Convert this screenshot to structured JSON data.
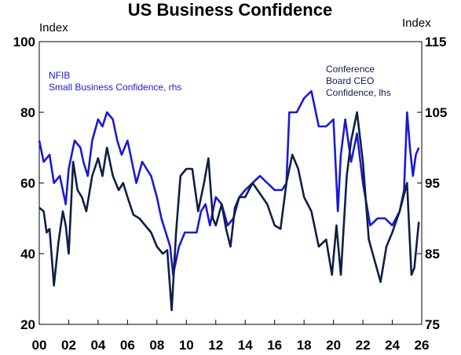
{
  "chart_data": {
    "type": "line",
    "title": "US Business Confidence",
    "left_axis_unit": "Index",
    "right_axis_unit": "Index",
    "left_axis": {
      "ylim": [
        20,
        100
      ],
      "ticks": [
        "20",
        "40",
        "60",
        "80",
        "100"
      ]
    },
    "right_axis": {
      "ylim": [
        75,
        115
      ],
      "ticks": [
        "75",
        "85",
        "95",
        "105",
        "115"
      ]
    },
    "x_range": [
      2000,
      2026
    ],
    "x_ticks": [
      "00",
      "02",
      "04",
      "06",
      "08",
      "10",
      "12",
      "14",
      "16",
      "18",
      "20",
      "22",
      "24",
      "26"
    ],
    "grid": false,
    "series": [
      {
        "name": "NFIB\nSmall Business Confidence, rhs",
        "axis": "right",
        "color": "#1a1ad6",
        "points": [
          [
            2000.0,
            101
          ],
          [
            2000.3,
            98
          ],
          [
            2000.7,
            99
          ],
          [
            2001.0,
            95
          ],
          [
            2001.4,
            96
          ],
          [
            2001.8,
            92
          ],
          [
            2002.0,
            97
          ],
          [
            2002.4,
            101
          ],
          [
            2002.8,
            100
          ],
          [
            2003.0,
            98
          ],
          [
            2003.3,
            96
          ],
          [
            2003.6,
            101
          ],
          [
            2004.0,
            104
          ],
          [
            2004.3,
            103
          ],
          [
            2004.6,
            105
          ],
          [
            2005.0,
            104
          ],
          [
            2005.3,
            101
          ],
          [
            2005.6,
            99
          ],
          [
            2006.0,
            101
          ],
          [
            2006.3,
            98
          ],
          [
            2006.6,
            95
          ],
          [
            2007.0,
            98
          ],
          [
            2007.3,
            97
          ],
          [
            2007.6,
            96
          ],
          [
            2008.0,
            93
          ],
          [
            2008.3,
            90
          ],
          [
            2008.6,
            88
          ],
          [
            2008.9,
            86
          ],
          [
            2009.1,
            82
          ],
          [
            2009.5,
            86
          ],
          [
            2009.9,
            88
          ],
          [
            2010.3,
            88
          ],
          [
            2010.7,
            88
          ],
          [
            2011.0,
            91
          ],
          [
            2011.3,
            92
          ],
          [
            2011.6,
            89
          ],
          [
            2012.0,
            93
          ],
          [
            2012.4,
            92
          ],
          [
            2012.8,
            89
          ],
          [
            2013.2,
            90
          ],
          [
            2013.6,
            93
          ],
          [
            2014.0,
            94
          ],
          [
            2014.5,
            95
          ],
          [
            2015.0,
            96
          ],
          [
            2015.5,
            95
          ],
          [
            2016.0,
            94
          ],
          [
            2016.5,
            94
          ],
          [
            2016.8,
            95
          ],
          [
            2017.0,
            105
          ],
          [
            2017.5,
            105
          ],
          [
            2018.0,
            107
          ],
          [
            2018.5,
            108
          ],
          [
            2019.0,
            103
          ],
          [
            2019.5,
            103
          ],
          [
            2020.0,
            104
          ],
          [
            2020.3,
            91
          ],
          [
            2020.5,
            99
          ],
          [
            2020.8,
            104
          ],
          [
            2021.2,
            98
          ],
          [
            2021.6,
            102
          ],
          [
            2022.0,
            95
          ],
          [
            2022.5,
            89
          ],
          [
            2023.0,
            90
          ],
          [
            2023.5,
            90
          ],
          [
            2024.0,
            89
          ],
          [
            2024.5,
            91
          ],
          [
            2024.8,
            94
          ],
          [
            2025.0,
            105
          ],
          [
            2025.2,
            100
          ],
          [
            2025.4,
            96
          ],
          [
            2025.6,
            99
          ],
          [
            2025.8,
            100
          ]
        ]
      },
      {
        "name": "Conference\nBoard CEO\nConfidence, lhs",
        "axis": "left",
        "color": "#0f1f45",
        "points": [
          [
            2000.0,
            53
          ],
          [
            2000.3,
            52
          ],
          [
            2000.5,
            46
          ],
          [
            2000.7,
            47
          ],
          [
            2001.0,
            31
          ],
          [
            2001.3,
            43
          ],
          [
            2001.6,
            52
          ],
          [
            2001.8,
            48
          ],
          [
            2002.0,
            40
          ],
          [
            2002.3,
            66
          ],
          [
            2002.6,
            58
          ],
          [
            2002.9,
            56
          ],
          [
            2003.2,
            52
          ],
          [
            2003.6,
            62
          ],
          [
            2004.0,
            67
          ],
          [
            2004.3,
            62
          ],
          [
            2004.6,
            70
          ],
          [
            2005.0,
            62
          ],
          [
            2005.4,
            58
          ],
          [
            2005.7,
            60
          ],
          [
            2006.0,
            56
          ],
          [
            2006.4,
            51
          ],
          [
            2006.8,
            50
          ],
          [
            2007.2,
            48
          ],
          [
            2007.6,
            46
          ],
          [
            2008.0,
            42
          ],
          [
            2008.4,
            40
          ],
          [
            2008.7,
            41
          ],
          [
            2009.0,
            24
          ],
          [
            2009.3,
            46
          ],
          [
            2009.6,
            62
          ],
          [
            2010.0,
            64
          ],
          [
            2010.4,
            64
          ],
          [
            2010.8,
            52
          ],
          [
            2011.2,
            60
          ],
          [
            2011.5,
            67
          ],
          [
            2011.8,
            50
          ],
          [
            2012.0,
            48
          ],
          [
            2012.4,
            54
          ],
          [
            2012.7,
            47
          ],
          [
            2013.0,
            42
          ],
          [
            2013.3,
            53
          ],
          [
            2013.6,
            56
          ],
          [
            2014.0,
            56
          ],
          [
            2014.5,
            60
          ],
          [
            2015.0,
            57
          ],
          [
            2015.5,
            54
          ],
          [
            2016.0,
            48
          ],
          [
            2016.4,
            47
          ],
          [
            2016.8,
            60
          ],
          [
            2017.2,
            68
          ],
          [
            2017.6,
            64
          ],
          [
            2018.0,
            56
          ],
          [
            2018.5,
            52
          ],
          [
            2019.0,
            42
          ],
          [
            2019.5,
            44
          ],
          [
            2019.9,
            34
          ],
          [
            2020.2,
            48
          ],
          [
            2020.5,
            34
          ],
          [
            2020.9,
            62
          ],
          [
            2021.2,
            72
          ],
          [
            2021.6,
            80
          ],
          [
            2022.0,
            66
          ],
          [
            2022.4,
            44
          ],
          [
            2022.8,
            38
          ],
          [
            2023.2,
            32
          ],
          [
            2023.6,
            42
          ],
          [
            2024.0,
            46
          ],
          [
            2024.5,
            52
          ],
          [
            2025.0,
            60
          ],
          [
            2025.3,
            34
          ],
          [
            2025.5,
            36
          ],
          [
            2025.8,
            49
          ]
        ]
      }
    ]
  }
}
